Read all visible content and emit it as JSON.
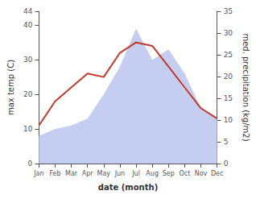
{
  "chart_data": {
    "type": "line",
    "xlabel": "date (month)",
    "ylabel": "max temp (C)",
    "y2label": "med. precipitation (kg/m2)",
    "categories": [
      "Jan",
      "Feb",
      "Mar",
      "Apr",
      "May",
      "Jun",
      "Jul",
      "Aug",
      "Sep",
      "Oct",
      "Nov",
      "Dec"
    ],
    "series": [
      {
        "type": "area",
        "color": "#c5cdf0",
        "values": [
          8,
          10,
          11,
          13,
          20,
          28,
          39,
          30,
          33,
          26,
          16,
          13
        ]
      },
      {
        "type": "line",
        "color": "#c0392b",
        "values": [
          11,
          18,
          22,
          26,
          25,
          32,
          35,
          34,
          28,
          22,
          16,
          13
        ]
      }
    ],
    "ylim": [
      0,
      44
    ],
    "yticks": [
      0,
      10,
      20,
      30,
      40
    ],
    "y2lim": [
      0,
      35
    ],
    "y2ticks": [
      0,
      5,
      10,
      15,
      20,
      25,
      30,
      35
    ],
    "grid": false
  }
}
